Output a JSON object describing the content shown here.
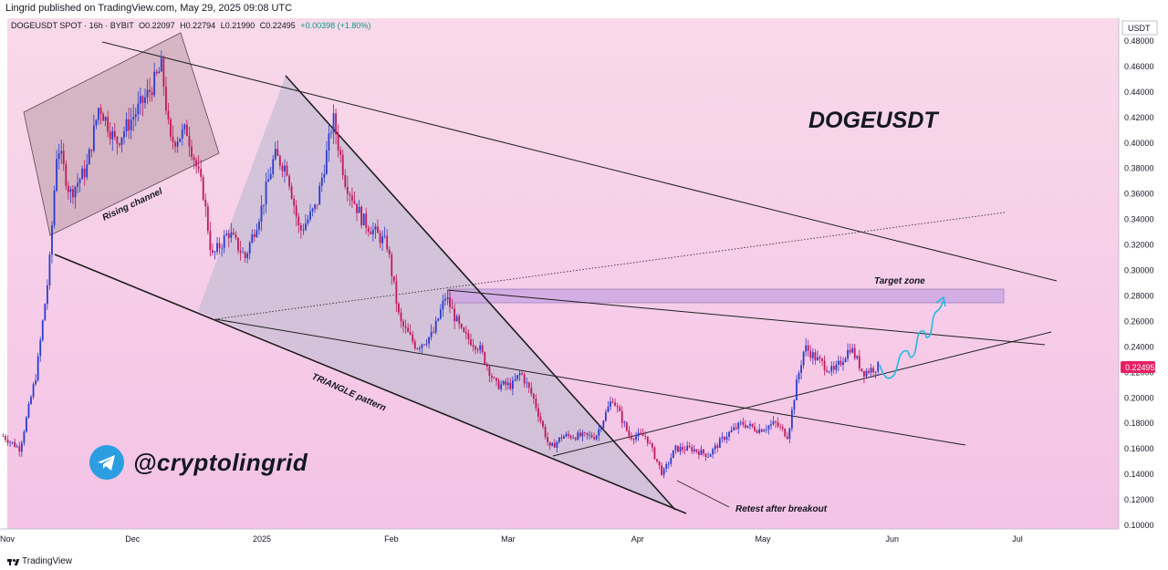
{
  "header": {
    "published_line": "Lingrid published on TradingView.com, May 29, 2025 09:08 UTC"
  },
  "legend": {
    "symbol": "DOGEUSDT SPOT · 16h · BYBIT",
    "open": "O0.22097",
    "high": "H0.22794",
    "low": "L0.21990",
    "close": "C0.22495",
    "change": "+0.00398 (+1.80%)"
  },
  "currency_label": "USDT",
  "last_price_label": "0.22495",
  "footer": {
    "brand": "TradingView"
  },
  "watermark": {
    "handle": "@cryptolingrid"
  },
  "colors": {
    "background_top": "#f9d9ea",
    "background_bottom": "#f4c3e6",
    "bull": "#2a3bd0",
    "bear": "#c2185b",
    "accent_line": "#22b9e0",
    "price_tag": "#e91e63"
  },
  "annotations": {
    "title": "DOGEUSDT",
    "rising_channel": "Rising channel",
    "triangle": "TRIANGLE pattern",
    "target_zone": "Target zone",
    "retest": "Retest after breakout"
  },
  "chart_data": {
    "type": "candlestick",
    "title": "DOGEUSDT",
    "ylabel": "USDT",
    "ylim": [
      0.1,
      0.48
    ],
    "grid": false,
    "y_ticks": [
      "0.48000",
      "0.46000",
      "0.44000",
      "0.42000",
      "0.40000",
      "0.38000",
      "0.36000",
      "0.34000",
      "0.32000",
      "0.30000",
      "0.28000",
      "0.26000",
      "0.24000",
      "0.22000",
      "0.20000",
      "0.18000",
      "0.16000",
      "0.14000",
      "0.12000",
      "0.10000"
    ],
    "x_ticks": [
      "Nov",
      "Dec",
      "2025",
      "Feb",
      "Mar",
      "Apr",
      "May",
      "Jun",
      "Jul"
    ],
    "price_path": [
      {
        "d": "Oct 31",
        "p": 0.17
      },
      {
        "d": "Nov 4",
        "p": 0.16
      },
      {
        "d": "Nov 8",
        "p": 0.22
      },
      {
        "d": "Nov 11",
        "p": 0.3
      },
      {
        "d": "Nov 13",
        "p": 0.4
      },
      {
        "d": "Nov 16",
        "p": 0.36
      },
      {
        "d": "Nov 20",
        "p": 0.38
      },
      {
        "d": "Nov 23",
        "p": 0.43
      },
      {
        "d": "Nov 27",
        "p": 0.4
      },
      {
        "d": "Dec 1",
        "p": 0.42
      },
      {
        "d": "Dec 5",
        "p": 0.44
      },
      {
        "d": "Dec 8",
        "p": 0.46
      },
      {
        "d": "Dec 10",
        "p": 0.4
      },
      {
        "d": "Dec 14",
        "p": 0.41
      },
      {
        "d": "Dec 18",
        "p": 0.36
      },
      {
        "d": "Dec 20",
        "p": 0.31
      },
      {
        "d": "Dec 24",
        "p": 0.33
      },
      {
        "d": "Dec 28",
        "p": 0.31
      },
      {
        "d": "Jan 1",
        "p": 0.35
      },
      {
        "d": "Jan 4",
        "p": 0.39
      },
      {
        "d": "Jan 7",
        "p": 0.38
      },
      {
        "d": "Jan 10",
        "p": 0.33
      },
      {
        "d": "Jan 14",
        "p": 0.35
      },
      {
        "d": "Jan 17",
        "p": 0.4
      },
      {
        "d": "Jan 18",
        "p": 0.42
      },
      {
        "d": "Jan 21",
        "p": 0.37
      },
      {
        "d": "Jan 25",
        "p": 0.34
      },
      {
        "d": "Jan 28",
        "p": 0.33
      },
      {
        "d": "Jan 31",
        "p": 0.32
      },
      {
        "d": "Feb 3",
        "p": 0.26
      },
      {
        "d": "Feb 7",
        "p": 0.24
      },
      {
        "d": "Feb 11",
        "p": 0.25
      },
      {
        "d": "Feb 14",
        "p": 0.28
      },
      {
        "d": "Feb 18",
        "p": 0.25
      },
      {
        "d": "Feb 22",
        "p": 0.24
      },
      {
        "d": "Feb 26",
        "p": 0.21
      },
      {
        "d": "Mar 2",
        "p": 0.21
      },
      {
        "d": "Mar 4",
        "p": 0.22
      },
      {
        "d": "Mar 7",
        "p": 0.2
      },
      {
        "d": "Mar 11",
        "p": 0.16
      },
      {
        "d": "Mar 14",
        "p": 0.17
      },
      {
        "d": "Mar 18",
        "p": 0.17
      },
      {
        "d": "Mar 22",
        "p": 0.17
      },
      {
        "d": "Mar 26",
        "p": 0.2
      },
      {
        "d": "Mar 30",
        "p": 0.17
      },
      {
        "d": "Apr 3",
        "p": 0.17
      },
      {
        "d": "Apr 7",
        "p": 0.14
      },
      {
        "d": "Apr 10",
        "p": 0.16
      },
      {
        "d": "Apr 14",
        "p": 0.16
      },
      {
        "d": "Apr 18",
        "p": 0.155
      },
      {
        "d": "Apr 22",
        "p": 0.17
      },
      {
        "d": "Apr 26",
        "p": 0.18
      },
      {
        "d": "Apr 30",
        "p": 0.175
      },
      {
        "d": "May 4",
        "p": 0.18
      },
      {
        "d": "May 7",
        "p": 0.17
      },
      {
        "d": "May 9",
        "p": 0.21
      },
      {
        "d": "May 11",
        "p": 0.24
      },
      {
        "d": "May 14",
        "p": 0.23
      },
      {
        "d": "May 18",
        "p": 0.22
      },
      {
        "d": "May 22",
        "p": 0.24
      },
      {
        "d": "May 25",
        "p": 0.22
      },
      {
        "d": "May 29",
        "p": 0.225
      }
    ],
    "last_price": 0.22495
  }
}
